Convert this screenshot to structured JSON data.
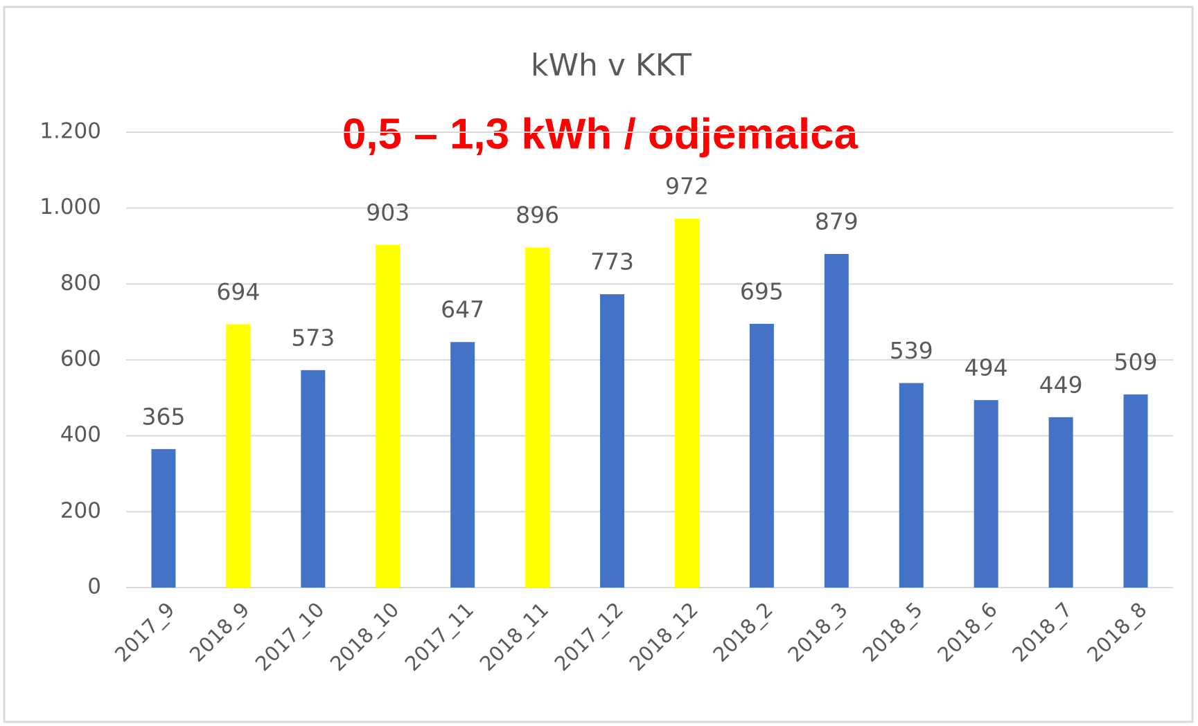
{
  "chart_data": {
    "type": "bar",
    "title": "kWh v KKT",
    "annotation": "0,5 – 1,3 kWh / odjemalca",
    "categories": [
      "2017_9",
      "2018_9",
      "2017_10",
      "2018_10",
      "2017_11",
      "2018_11",
      "2017_12",
      "2018_12",
      "2018_2",
      "2018_3",
      "2018_5",
      "2018_6",
      "2018_7",
      "2018_8"
    ],
    "values": [
      365,
      694,
      573,
      903,
      647,
      896,
      773,
      972,
      695,
      879,
      539,
      494,
      449,
      509
    ],
    "colors": [
      "#4472c4",
      "#ffff00",
      "#4472c4",
      "#ffff00",
      "#4472c4",
      "#ffff00",
      "#4472c4",
      "#ffff00",
      "#4472c4",
      "#4472c4",
      "#4472c4",
      "#4472c4",
      "#4472c4",
      "#4472c4"
    ],
    "ylim": [
      0,
      1200
    ],
    "yticks": [
      0,
      200,
      400,
      600,
      800,
      {
        "value": 1000,
        "label": "1.000"
      },
      {
        "value": 1200,
        "label": "1.200"
      }
    ],
    "grid": true
  }
}
